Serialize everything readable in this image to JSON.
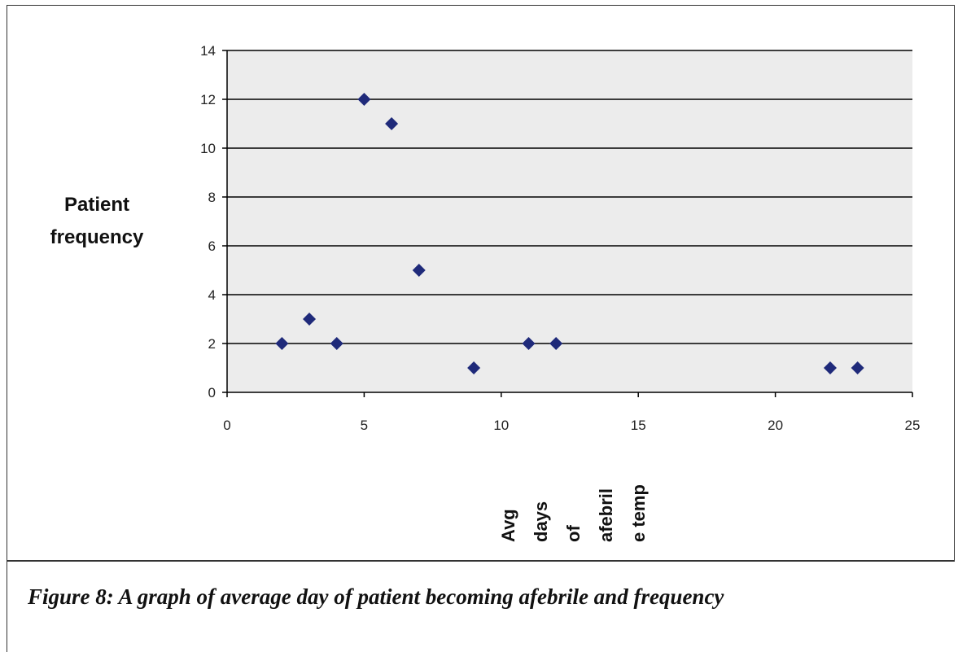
{
  "caption": "Figure 8: A graph of average day of patient becoming afebrile and frequency",
  "chart_data": {
    "type": "scatter",
    "title": "",
    "ylabel_lines": [
      "Patient",
      "frequency"
    ],
    "xlabel_lines": [
      "Avg",
      "days",
      "of",
      "afebril",
      "e temp"
    ],
    "xlim": [
      0,
      25
    ],
    "ylim": [
      0,
      14
    ],
    "xticks": [
      0,
      5,
      10,
      15,
      20,
      25
    ],
    "yticks": [
      0,
      2,
      4,
      6,
      8,
      10,
      12,
      14
    ],
    "grid": "horizontal",
    "legend": "none",
    "marker": "diamond",
    "colors": {
      "marker": "#1f2a7a",
      "plot_bg": "#ececec",
      "grid": "#000000"
    },
    "points": [
      {
        "x": 2,
        "y": 2
      },
      {
        "x": 3,
        "y": 3
      },
      {
        "x": 4,
        "y": 2
      },
      {
        "x": 5,
        "y": 12
      },
      {
        "x": 6,
        "y": 11
      },
      {
        "x": 7,
        "y": 5
      },
      {
        "x": 9,
        "y": 1
      },
      {
        "x": 11,
        "y": 2
      },
      {
        "x": 12,
        "y": 2
      },
      {
        "x": 22,
        "y": 1
      },
      {
        "x": 23,
        "y": 1
      }
    ]
  }
}
